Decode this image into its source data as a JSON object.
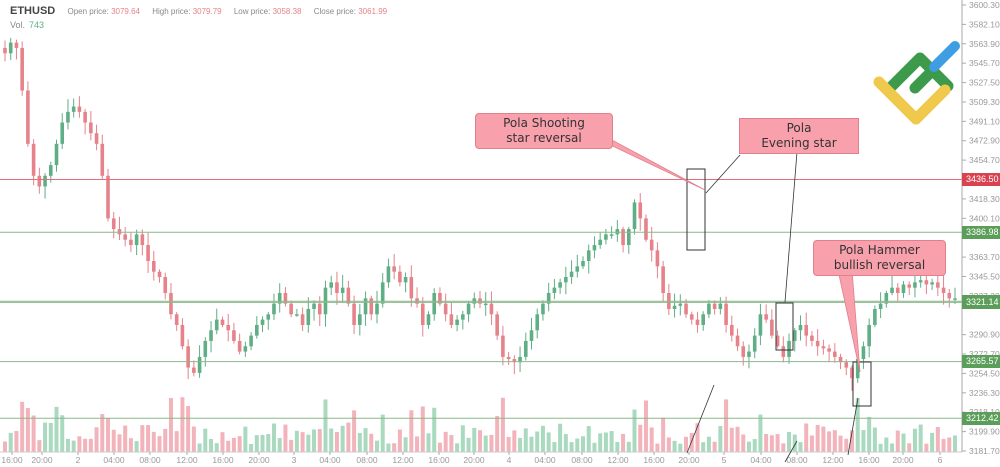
{
  "header": {
    "symbol": "ETHUSD",
    "open_label": "Open price:",
    "open": "3079.64",
    "high_label": "High price:",
    "high": "3079.79",
    "low_label": "Low price:",
    "low": "3058.38",
    "close_label": "Close price:",
    "close": "3061.99",
    "vol_label": "Vol.",
    "vol": "743"
  },
  "colors": {
    "up": "#5fae85",
    "down": "#e5828a",
    "up_vol": "#a9d9be",
    "down_vol": "#f2b3ba",
    "red_line": "#e0707a",
    "green_line": "#8cb88c",
    "axis_text": "#999"
  },
  "callouts": [
    {
      "line1": "Pola Shooting",
      "line2": "star reversal"
    },
    {
      "line1": "Pola",
      "line2": "Evening star"
    },
    {
      "line1": "Pola Hammer",
      "line2": "bullish reversal"
    }
  ],
  "chart_data": {
    "type": "candlestick",
    "title": "ETHUSD",
    "ylim": [
      3181.7,
      3600.3
    ],
    "y_ticks": [
      "3600.30",
      "3582.10",
      "3563.90",
      "3545.70",
      "3527.50",
      "3509.30",
      "3491.10",
      "3472.90",
      "3454.70",
      "3436.50",
      "3418.30",
      "3400.10",
      "3386.98",
      "3363.70",
      "3345.50",
      "3327.30",
      "3322.24",
      "3321.14",
      "3290.90",
      "3272.70",
      "3265.57",
      "3254.50",
      "3236.30",
      "3218.10",
      "3212.42",
      "3199.90",
      "3181.70"
    ],
    "x_ticks": [
      "16:00",
      "20:00",
      "2",
      "04:00",
      "08:00",
      "12:00",
      "16:00",
      "20:00",
      "3",
      "04:00",
      "08:00",
      "12:00",
      "16:00",
      "20:00",
      "4",
      "04:00",
      "08:00",
      "12:00",
      "16:00",
      "20:00",
      "5",
      "04:00",
      "08:00",
      "12:00",
      "16:00",
      "20:00",
      "6"
    ],
    "levels": [
      {
        "price": "3436.50",
        "color": "red"
      },
      {
        "price": "3386.98",
        "color": "green"
      },
      {
        "price": "3322.24",
        "color": "green"
      },
      {
        "price": "3321.14",
        "color": "green"
      },
      {
        "price": "3265.57",
        "color": "green"
      },
      {
        "price": "3212.42",
        "color": "green"
      }
    ],
    "close_path": [
      3555,
      3565,
      3560,
      3520,
      3470,
      3440,
      3430,
      3440,
      3450,
      3470,
      3490,
      3500,
      3505,
      3500,
      3490,
      3480,
      3470,
      3440,
      3400,
      3390,
      3385,
      3380,
      3375,
      3385,
      3375,
      3360,
      3350,
      3345,
      3330,
      3310,
      3300,
      3280,
      3260,
      3255,
      3270,
      3285,
      3295,
      3305,
      3300,
      3295,
      3285,
      3275,
      3280,
      3290,
      3300,
      3305,
      3310,
      3320,
      3330,
      3320,
      3310,
      3310,
      3300,
      3315,
      3320,
      3310,
      3335,
      3340,
      3330,
      3335,
      3320,
      3300,
      3310,
      3325,
      3310,
      3320,
      3340,
      3355,
      3350,
      3340,
      3345,
      3325,
      3320,
      3300,
      3310,
      3330,
      3320,
      3310,
      3300,
      3305,
      3310,
      3320,
      3325,
      3320,
      3320,
      3310,
      3290,
      3270,
      3268,
      3265,
      3270,
      3285,
      3295,
      3310,
      3320,
      3330,
      3335,
      3340,
      3345,
      3350,
      3355,
      3360,
      3370,
      3375,
      3380,
      3385,
      3385,
      3390,
      3375,
      3390,
      3415,
      3400,
      3380,
      3370,
      3355,
      3330,
      3315,
      3318,
      3320,
      3310,
      3305,
      3300,
      3310,
      3320,
      3315,
      3320,
      3300,
      3290,
      3280,
      3270,
      3275,
      3290,
      3310,
      3305,
      3290,
      3280,
      3270,
      3285,
      3295,
      3300,
      3290,
      3285,
      3280,
      3278,
      3275,
      3270,
      3265,
      3260,
      3250,
      3268,
      3280,
      3300,
      3315,
      3320,
      3330,
      3335,
      3330,
      3338,
      3335,
      3340,
      3342,
      3338,
      3340,
      3335,
      3330,
      3325,
      3325
    ],
    "volume_note": "volume bars shown beneath price, green for up bars, red for down bars"
  }
}
